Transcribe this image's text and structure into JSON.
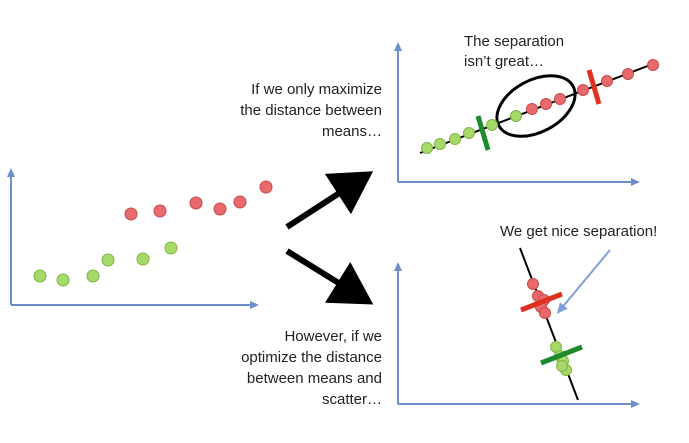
{
  "labels": {
    "top_left_line1": "If we only maximize",
    "top_left_line2": "the distance between",
    "top_left_line3": "means…",
    "top_right_line1": "The separation",
    "top_right_line2": "isn’t great…",
    "bottom_left_line1": "However, if we",
    "bottom_left_line2": "optimize the distance",
    "bottom_left_line3": "between means and",
    "bottom_left_line4": "scatter…",
    "bottom_right": "We get nice separation!"
  },
  "colors": {
    "axis": "#6b8ec8",
    "green_point": "#a6d96a",
    "green_point_edge": "#7fb543",
    "red_point": "#e86a6a",
    "red_point_edge": "#c84a4a",
    "green_bar": "#1e8a2e",
    "red_bar": "#e0301e",
    "arrow": "#000000",
    "callout_arrow": "#7f9fd6"
  },
  "icons": {
    "big_arrows": "arrow-icon",
    "callout": "callout-arrow-icon"
  }
}
